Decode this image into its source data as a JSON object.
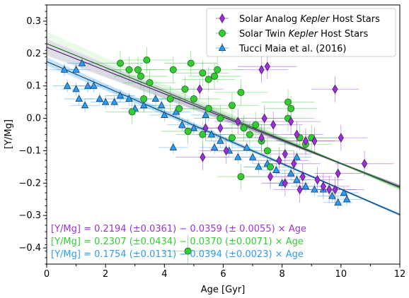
{
  "chart_data": {
    "type": "scatter",
    "xlabel": "Age [Gyr]",
    "ylabel": "[Y/Mg]",
    "xlim": [
      0,
      12
    ],
    "ylim": [
      -0.45,
      0.35
    ],
    "x_ticks": [
      0,
      2,
      4,
      6,
      8,
      10,
      12
    ],
    "y_ticks": [
      -0.4,
      -0.3,
      -0.2,
      -0.1,
      0.0,
      0.1,
      0.2,
      0.3
    ],
    "x_tick_labels": [
      "0",
      "2",
      "4",
      "6",
      "8",
      "10",
      "12"
    ],
    "y_tick_labels": [
      "−0.4",
      "−0.3",
      "−0.2",
      "−0.1",
      "0.0",
      "0.1",
      "0.2",
      "0.3"
    ],
    "grid": false,
    "legend_position": "top-right",
    "legend": {
      "analog": {
        "prefix": "Solar Analog ",
        "italic": "Kepler",
        "suffix": " Host Stars"
      },
      "twin": {
        "prefix": "Solar Twin ",
        "italic": "Kepler",
        "suffix": " Host Stars"
      },
      "tucci": {
        "prefix": "Tucci Maia et al. (2016)",
        "italic": "",
        "suffix": ""
      }
    },
    "fit_labels": {
      "analog": "[Y/Mg] = 0.2194 (±0.0361) − 0.0359 (± 0.0055) × Age",
      "twin": "[Y/Mg] = 0.2307 (±0.0434) − 0.0370 (±0.0071) × Age",
      "tucci": "[Y/Mg] = 0.1754 (±0.0131) − 0.0394 (±0.0023) × Age"
    },
    "series": [
      {
        "name": "Solar Analog Kepler Host Stars",
        "key": "analog",
        "marker": "diamond",
        "color": "#9b30d9",
        "edge": "#4b1566",
        "fit": {
          "intercept": 0.2194,
          "slope": -0.0359
        },
        "points": [
          {
            "x": 5.2,
            "y": 0.09,
            "xerr": 0.8,
            "yerr": 0.03
          },
          {
            "x": 7.3,
            "y": 0.15,
            "xerr": 0.9,
            "yerr": 0.04
          },
          {
            "x": 7.5,
            "y": 0.16,
            "xerr": 1.0,
            "yerr": 0.04
          },
          {
            "x": 9.8,
            "y": 0.09,
            "xerr": 0.8,
            "yerr": 0.04
          },
          {
            "x": 5.4,
            "y": -0.03,
            "xerr": 0.9,
            "yerr": 0.04
          },
          {
            "x": 5.3,
            "y": -0.12,
            "xerr": 0.9,
            "yerr": 0.04
          },
          {
            "x": 6.1,
            "y": -0.1,
            "xerr": 0.9,
            "yerr": 0.04
          },
          {
            "x": 6.5,
            "y": -0.01,
            "xerr": 0.8,
            "yerr": 0.04
          },
          {
            "x": 7.3,
            "y": -0.06,
            "xerr": 0.9,
            "yerr": 0.04
          },
          {
            "x": 7.4,
            "y": 0.0,
            "xerr": 0.8,
            "yerr": 0.04
          },
          {
            "x": 7.7,
            "y": -0.02,
            "xerr": 1.0,
            "yerr": 0.04
          },
          {
            "x": 8.3,
            "y": -0.01,
            "xerr": 1.0,
            "yerr": 0.04
          },
          {
            "x": 8.5,
            "y": -0.05,
            "xerr": 0.9,
            "yerr": 0.04
          },
          {
            "x": 8.8,
            "y": -0.07,
            "xerr": 1.0,
            "yerr": 0.04
          },
          {
            "x": 9.1,
            "y": -0.07,
            "xerr": 0.9,
            "yerr": 0.04
          },
          {
            "x": 10.0,
            "y": -0.06,
            "xerr": 0.9,
            "yerr": 0.04
          },
          {
            "x": 10.8,
            "y": -0.14,
            "xerr": 1.0,
            "yerr": 0.04
          },
          {
            "x": 8.1,
            "y": -0.11,
            "xerr": 0.9,
            "yerr": 0.04
          },
          {
            "x": 7.9,
            "y": -0.13,
            "xerr": 1.0,
            "yerr": 0.04
          },
          {
            "x": 8.4,
            "y": -0.14,
            "xerr": 0.9,
            "yerr": 0.04
          },
          {
            "x": 8.7,
            "y": -0.18,
            "xerr": 1.0,
            "yerr": 0.04
          },
          {
            "x": 7.6,
            "y": -0.18,
            "xerr": 0.8,
            "yerr": 0.04
          },
          {
            "x": 8.1,
            "y": -0.2,
            "xerr": 0.8,
            "yerr": 0.04
          },
          {
            "x": 9.2,
            "y": -0.19,
            "xerr": 0.9,
            "yerr": 0.04
          },
          {
            "x": 9.4,
            "y": -0.21,
            "xerr": 0.9,
            "yerr": 0.04
          },
          {
            "x": 9.6,
            "y": -0.22,
            "xerr": 0.9,
            "yerr": 0.04
          },
          {
            "x": 9.8,
            "y": -0.22,
            "xerr": 1.0,
            "yerr": 0.04
          },
          {
            "x": 9.9,
            "y": -0.17,
            "xerr": 0.8,
            "yerr": 0.04
          },
          {
            "x": 8.6,
            "y": -0.22,
            "xerr": 0.9,
            "yerr": 0.04
          },
          {
            "x": 5.9,
            "y": -0.03,
            "xerr": 0.7,
            "yerr": 0.04
          }
        ]
      },
      {
        "name": "Solar Twin Kepler Host Stars",
        "key": "twin",
        "marker": "circle",
        "color": "#33cc33",
        "edge": "#1f5e1f",
        "fit": {
          "intercept": 0.2307,
          "slope": -0.037
        },
        "points": [
          {
            "x": 2.5,
            "y": 0.17,
            "xerr": 0.8,
            "yerr": 0.04
          },
          {
            "x": 2.8,
            "y": 0.15,
            "xerr": 0.9,
            "yerr": 0.04
          },
          {
            "x": 3.1,
            "y": 0.15,
            "xerr": 0.9,
            "yerr": 0.04
          },
          {
            "x": 3.4,
            "y": 0.18,
            "xerr": 0.9,
            "yerr": 0.04
          },
          {
            "x": 3.5,
            "y": 0.11,
            "xerr": 0.9,
            "yerr": 0.04
          },
          {
            "x": 3.2,
            "y": 0.13,
            "xerr": 0.9,
            "yerr": 0.04
          },
          {
            "x": 3.3,
            "y": 0.06,
            "xerr": 0.8,
            "yerr": 0.04
          },
          {
            "x": 2.9,
            "y": 0.02,
            "xerr": 0.9,
            "yerr": 0.04
          },
          {
            "x": 4.3,
            "y": 0.15,
            "xerr": 0.9,
            "yerr": 0.04
          },
          {
            "x": 4.2,
            "y": 0.06,
            "xerr": 0.9,
            "yerr": 0.04
          },
          {
            "x": 4.5,
            "y": 0.03,
            "xerr": 0.9,
            "yerr": 0.04
          },
          {
            "x": 4.7,
            "y": 0.09,
            "xerr": 0.9,
            "yerr": 0.04
          },
          {
            "x": 5.0,
            "y": 0.06,
            "xerr": 0.9,
            "yerr": 0.04
          },
          {
            "x": 4.9,
            "y": 0.17,
            "xerr": 0.9,
            "yerr": 0.04
          },
          {
            "x": 5.3,
            "y": 0.14,
            "xerr": 0.9,
            "yerr": 0.04
          },
          {
            "x": 5.5,
            "y": 0.12,
            "xerr": 0.9,
            "yerr": 0.04
          },
          {
            "x": 5.7,
            "y": 0.13,
            "xerr": 0.9,
            "yerr": 0.04
          },
          {
            "x": 5.8,
            "y": 0.15,
            "xerr": 0.9,
            "yerr": 0.04
          },
          {
            "x": 5.5,
            "y": 0.03,
            "xerr": 0.9,
            "yerr": 0.04
          },
          {
            "x": 5.9,
            "y": 0.0,
            "xerr": 0.9,
            "yerr": 0.04
          },
          {
            "x": 6.3,
            "y": 0.04,
            "xerr": 0.9,
            "yerr": 0.04
          },
          {
            "x": 6.6,
            "y": 0.08,
            "xerr": 0.9,
            "yerr": 0.04
          },
          {
            "x": 6.7,
            "y": -0.03,
            "xerr": 0.9,
            "yerr": 0.04
          },
          {
            "x": 6.9,
            "y": -0.05,
            "xerr": 0.9,
            "yerr": 0.04
          },
          {
            "x": 7.1,
            "y": -0.02,
            "xerr": 0.9,
            "yerr": 0.04
          },
          {
            "x": 6.3,
            "y": -0.06,
            "xerr": 0.9,
            "yerr": 0.04
          },
          {
            "x": 5.3,
            "y": -0.05,
            "xerr": 0.9,
            "yerr": 0.04
          },
          {
            "x": 4.8,
            "y": -0.04,
            "xerr": 0.9,
            "yerr": 0.04
          },
          {
            "x": 7.3,
            "y": -0.07,
            "xerr": 0.9,
            "yerr": 0.04
          },
          {
            "x": 7.5,
            "y": -0.1,
            "xerr": 0.9,
            "yerr": 0.04
          },
          {
            "x": 7.6,
            "y": -0.15,
            "xerr": 0.9,
            "yerr": 0.04
          },
          {
            "x": 8.2,
            "y": 0.05,
            "xerr": 0.9,
            "yerr": 0.04
          },
          {
            "x": 8.3,
            "y": 0.03,
            "xerr": 0.9,
            "yerr": 0.04
          },
          {
            "x": 8.2,
            "y": 0.0,
            "xerr": 0.9,
            "yerr": 0.04
          },
          {
            "x": 8.6,
            "y": -0.06,
            "xerr": 0.9,
            "yerr": 0.04
          },
          {
            "x": 8.8,
            "y": -0.08,
            "xerr": 0.9,
            "yerr": 0.04
          },
          {
            "x": 9.0,
            "y": -0.06,
            "xerr": 0.9,
            "yerr": 0.04
          },
          {
            "x": 6.6,
            "y": -0.18,
            "xerr": 0.8,
            "yerr": 0.04
          },
          {
            "x": 4.8,
            "y": -0.41,
            "xerr": 0.9,
            "yerr": 0.05
          }
        ]
      },
      {
        "name": "Tucci Maia et al. (2016)",
        "key": "tucci",
        "marker": "triangle",
        "color": "#2a9df4",
        "edge": "#123c66",
        "fit": {
          "intercept": 0.1754,
          "slope": -0.0394
        },
        "points": [
          {
            "x": 0.6,
            "y": 0.15,
            "xerr": 0.5,
            "yerr": 0.02
          },
          {
            "x": 1.0,
            "y": 0.15,
            "xerr": 0.5,
            "yerr": 0.02
          },
          {
            "x": 1.2,
            "y": 0.17,
            "xerr": 0.5,
            "yerr": 0.02
          },
          {
            "x": 0.7,
            "y": 0.1,
            "xerr": 0.5,
            "yerr": 0.02
          },
          {
            "x": 1.0,
            "y": 0.09,
            "xerr": 0.5,
            "yerr": 0.02
          },
          {
            "x": 1.4,
            "y": 0.1,
            "xerr": 0.5,
            "yerr": 0.02
          },
          {
            "x": 1.6,
            "y": 0.1,
            "xerr": 0.5,
            "yerr": 0.02
          },
          {
            "x": 1.8,
            "y": 0.06,
            "xerr": 0.5,
            "yerr": 0.02
          },
          {
            "x": 2.0,
            "y": 0.05,
            "xerr": 0.5,
            "yerr": 0.02
          },
          {
            "x": 1.3,
            "y": 0.04,
            "xerr": 0.5,
            "yerr": 0.02
          },
          {
            "x": 1.1,
            "y": 0.06,
            "xerr": 0.5,
            "yerr": 0.02
          },
          {
            "x": 2.3,
            "y": 0.05,
            "xerr": 0.5,
            "yerr": 0.02
          },
          {
            "x": 2.5,
            "y": 0.07,
            "xerr": 0.5,
            "yerr": 0.02
          },
          {
            "x": 2.8,
            "y": 0.06,
            "xerr": 0.5,
            "yerr": 0.02
          },
          {
            "x": 3.0,
            "y": 0.03,
            "xerr": 0.5,
            "yerr": 0.02
          },
          {
            "x": 3.3,
            "y": 0.04,
            "xerr": 0.5,
            "yerr": 0.02
          },
          {
            "x": 3.7,
            "y": 0.06,
            "xerr": 0.5,
            "yerr": 0.02
          },
          {
            "x": 3.9,
            "y": 0.04,
            "xerr": 0.5,
            "yerr": 0.02
          },
          {
            "x": 4.0,
            "y": 0.01,
            "xerr": 0.5,
            "yerr": 0.02
          },
          {
            "x": 4.4,
            "y": 0.02,
            "xerr": 0.5,
            "yerr": 0.02
          },
          {
            "x": 4.6,
            "y": -0.02,
            "xerr": 0.5,
            "yerr": 0.02
          },
          {
            "x": 5.0,
            "y": -0.03,
            "xerr": 0.5,
            "yerr": 0.02
          },
          {
            "x": 5.4,
            "y": 0.01,
            "xerr": 0.5,
            "yerr": 0.02
          },
          {
            "x": 5.6,
            "y": -0.05,
            "xerr": 0.5,
            "yerr": 0.02
          },
          {
            "x": 5.9,
            "y": -0.07,
            "xerr": 0.5,
            "yerr": 0.02
          },
          {
            "x": 5.7,
            "y": -0.09,
            "xerr": 0.5,
            "yerr": 0.02
          },
          {
            "x": 6.2,
            "y": -0.1,
            "xerr": 0.5,
            "yerr": 0.02
          },
          {
            "x": 6.5,
            "y": -0.12,
            "xerr": 0.5,
            "yerr": 0.02
          },
          {
            "x": 6.8,
            "y": -0.09,
            "xerr": 0.5,
            "yerr": 0.02
          },
          {
            "x": 7.0,
            "y": -0.12,
            "xerr": 0.5,
            "yerr": 0.02
          },
          {
            "x": 7.5,
            "y": -0.14,
            "xerr": 0.5,
            "yerr": 0.02
          },
          {
            "x": 7.8,
            "y": -0.16,
            "xerr": 0.5,
            "yerr": 0.02
          },
          {
            "x": 8.0,
            "y": -0.2,
            "xerr": 0.5,
            "yerr": 0.02
          },
          {
            "x": 8.3,
            "y": -0.17,
            "xerr": 0.5,
            "yerr": 0.02
          },
          {
            "x": 8.5,
            "y": -0.19,
            "xerr": 0.5,
            "yerr": 0.02
          },
          {
            "x": 8.8,
            "y": -0.21,
            "xerr": 0.5,
            "yerr": 0.02
          },
          {
            "x": 9.1,
            "y": -0.22,
            "xerr": 0.5,
            "yerr": 0.02
          },
          {
            "x": 9.4,
            "y": -0.22,
            "xerr": 0.5,
            "yerr": 0.02
          },
          {
            "x": 9.7,
            "y": -0.24,
            "xerr": 0.5,
            "yerr": 0.02
          },
          {
            "x": 9.9,
            "y": -0.26,
            "xerr": 0.5,
            "yerr": 0.02
          },
          {
            "x": 10.1,
            "y": -0.23,
            "xerr": 0.5,
            "yerr": 0.02
          },
          {
            "x": 10.2,
            "y": -0.25,
            "xerr": 0.5,
            "yerr": 0.02
          },
          {
            "x": 4.3,
            "y": -0.09,
            "xerr": 0.5,
            "yerr": 0.02
          },
          {
            "x": 7.2,
            "y": -0.15,
            "xerr": 0.5,
            "yerr": 0.02
          },
          {
            "x": 8.5,
            "y": -0.12,
            "xerr": 0.5,
            "yerr": 0.02
          }
        ]
      }
    ]
  }
}
